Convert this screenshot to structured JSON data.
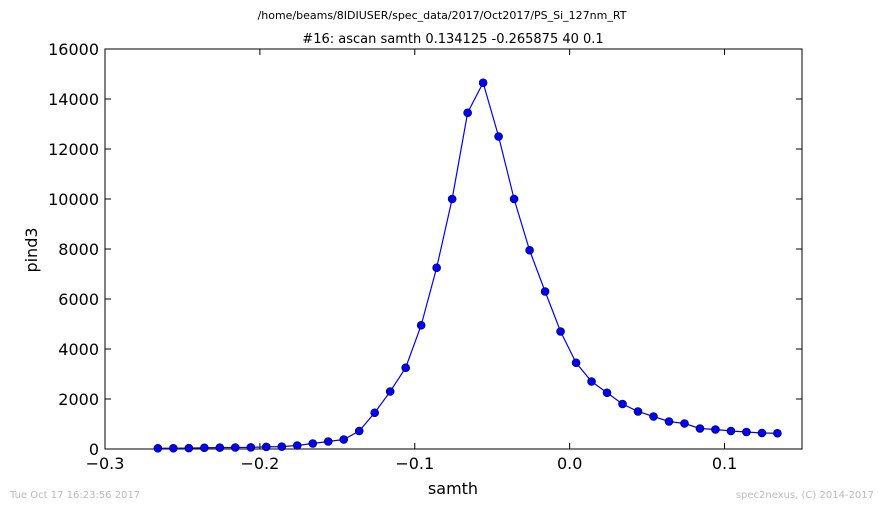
{
  "chart_data": {
    "type": "line",
    "suptitle": "/home/beams/8IDIUSER/spec_data/2017/Oct2017/PS_Si_127nm_RT",
    "title": "#16: ascan  samth 0.134125 -0.265875  40 0.1",
    "xlabel": "samth",
    "ylabel": "pind3",
    "xlim": [
      -0.3,
      0.15
    ],
    "ylim": [
      0,
      16000
    ],
    "xticks": [
      -0.3,
      -0.2,
      -0.1,
      0.0,
      0.1
    ],
    "xtick_labels": [
      "−0.3",
      "−0.2",
      "−0.1",
      "0.0",
      "0.1"
    ],
    "yticks": [
      0,
      2000,
      4000,
      6000,
      8000,
      10000,
      12000,
      14000,
      16000
    ],
    "ytick_labels": [
      "0",
      "2000",
      "4000",
      "6000",
      "8000",
      "10000",
      "12000",
      "14000",
      "16000"
    ],
    "grid": false,
    "marker": "circle",
    "color": "#0000ff",
    "x": [
      -0.265875,
      -0.255875,
      -0.245875,
      -0.235875,
      -0.225875,
      -0.215875,
      -0.205875,
      -0.195875,
      -0.185875,
      -0.175875,
      -0.165875,
      -0.155875,
      -0.145875,
      -0.135875,
      -0.125875,
      -0.115875,
      -0.105875,
      -0.095875,
      -0.085875,
      -0.075875,
      -0.065875,
      -0.055875,
      -0.045875,
      -0.035875,
      -0.025875,
      -0.015875,
      -0.005875,
      0.004125,
      0.014125,
      0.024125,
      0.034125,
      0.044125,
      0.054125,
      0.064125,
      0.074125,
      0.084125,
      0.094125,
      0.104125,
      0.114125,
      0.124125,
      0.134125
    ],
    "y": [
      30,
      30,
      35,
      50,
      55,
      60,
      65,
      85,
      95,
      140,
      220,
      300,
      380,
      720,
      1450,
      2300,
      3250,
      4950,
      7250,
      10000,
      13450,
      14650,
      12500,
      10000,
      7950,
      6300,
      4700,
      3450,
      2700,
      2250,
      1800,
      1500,
      1300,
      1100,
      1020,
      820,
      780,
      720,
      680,
      640,
      630
    ]
  },
  "footer": {
    "timestamp": "Tue Oct 17 16:23:56 2017",
    "credit": "spec2nexus, (C) 2014-2017"
  }
}
